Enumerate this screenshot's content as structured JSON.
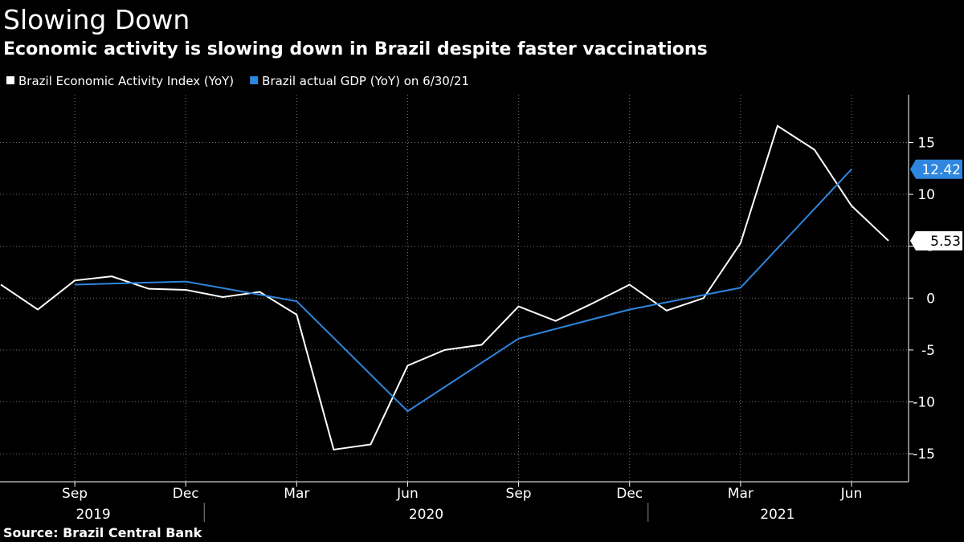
{
  "chart_data": {
    "type": "line",
    "title": "Slowing Down",
    "subtitle": "Economic activity is slowing down in Brazil despite faster vaccinations",
    "source": "Source: Brazil Central Bank",
    "series": [
      {
        "name": "Brazil Economic Activity Index (YoY)",
        "color": "#ffffff",
        "x": [
          "2019-07",
          "2019-08",
          "2019-09",
          "2019-10",
          "2019-11",
          "2019-12",
          "2020-01",
          "2020-02",
          "2020-03",
          "2020-04",
          "2020-05",
          "2020-06",
          "2020-07",
          "2020-08",
          "2020-09",
          "2020-10",
          "2020-11",
          "2020-12",
          "2021-01",
          "2021-02",
          "2021-03",
          "2021-04",
          "2021-05",
          "2021-06",
          "2021-07"
        ],
        "values": [
          1.3,
          -1.1,
          1.7,
          2.1,
          0.9,
          0.8,
          0.1,
          0.6,
          -1.6,
          -14.6,
          -14.1,
          -6.5,
          -5.0,
          -4.5,
          -0.8,
          -2.2,
          -0.5,
          1.3,
          -1.2,
          0.0,
          5.3,
          16.6,
          14.3,
          8.9,
          5.53
        ]
      },
      {
        "name": "Brazil actual GDP (YoY) on 6/30/21",
        "color": "#2e86de",
        "x": [
          "2019-09",
          "2019-12",
          "2020-03",
          "2020-06",
          "2020-09",
          "2020-12",
          "2021-03",
          "2021-06"
        ],
        "values": [
          1.3,
          1.6,
          -0.3,
          -10.9,
          -3.9,
          -1.1,
          1.0,
          12.42
        ]
      }
    ],
    "xlim": [
      "2019-07",
      "2021-07"
    ],
    "xticks": [
      {
        "value": "2019-09",
        "label": "Sep"
      },
      {
        "value": "2019-12",
        "label": "Dec"
      },
      {
        "value": "2020-03",
        "label": "Mar"
      },
      {
        "value": "2020-06",
        "label": "Jun"
      },
      {
        "value": "2020-09",
        "label": "Sep"
      },
      {
        "value": "2020-12",
        "label": "Dec"
      },
      {
        "value": "2021-03",
        "label": "Mar"
      },
      {
        "value": "2021-06",
        "label": "Jun"
      }
    ],
    "year_labels": [
      "2019",
      "2020",
      "2021"
    ],
    "ylim": [
      -17.7,
      19.6
    ],
    "yticks": [
      -15,
      -10,
      -5,
      0,
      5,
      10,
      15
    ],
    "grid": true
  }
}
